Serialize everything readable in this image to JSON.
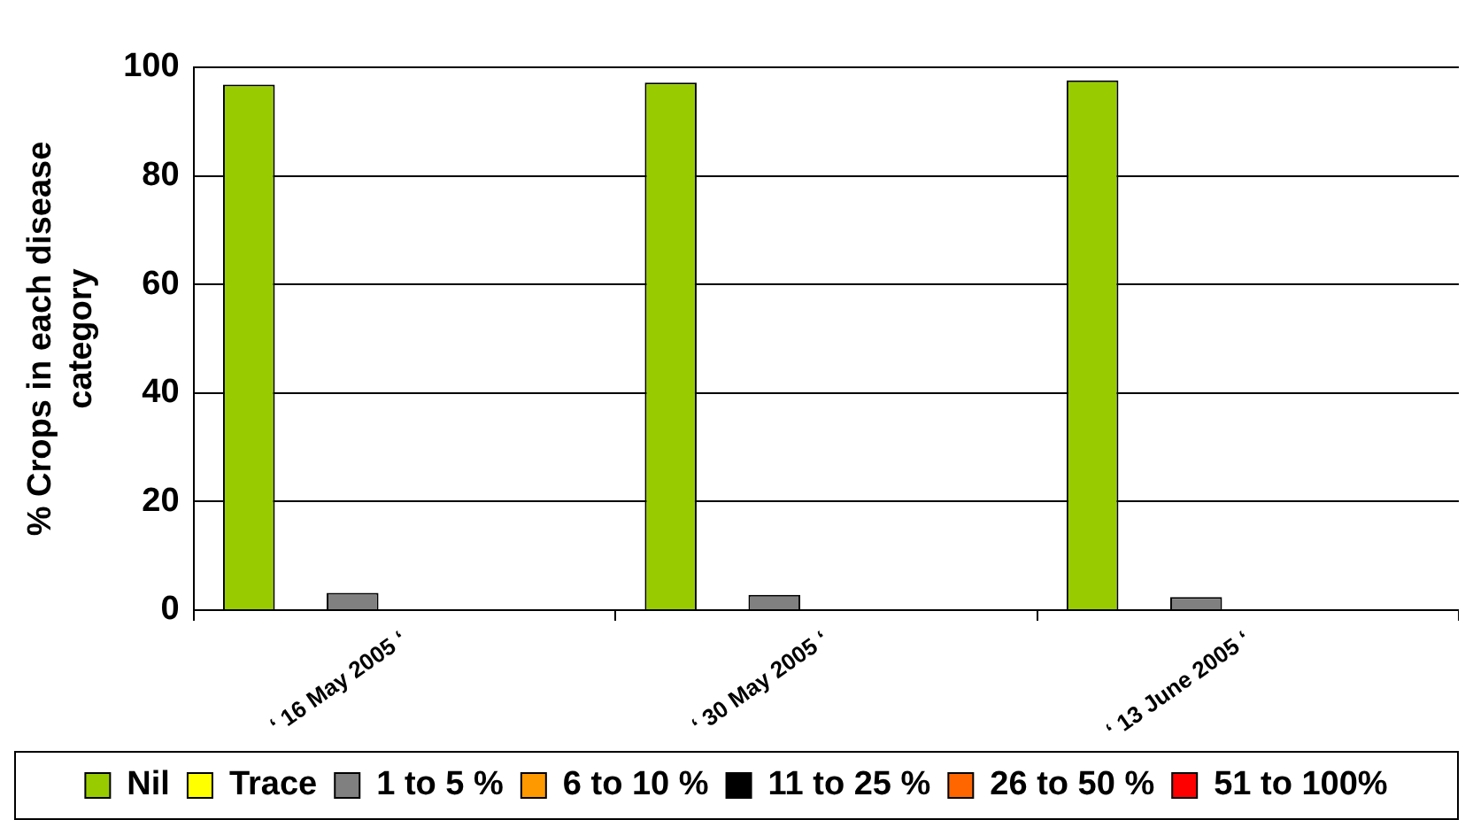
{
  "chart_data": {
    "type": "bar",
    "ylabel": "% Crops in each disease category",
    "categories": [
      "‘ 16 May 2005 ‘",
      "‘ 30 May 2005 ‘",
      "‘ 13 June 2005 ‘"
    ],
    "series": [
      {
        "name": "Nil",
        "color": "#99cc00",
        "values": [
          96.8,
          97.2,
          97.6
        ]
      },
      {
        "name": "Trace",
        "color": "#ffff00",
        "values": [
          0,
          0,
          0
        ]
      },
      {
        "name": "1 to 5 %",
        "color": "#808080",
        "values": [
          3.2,
          2.8,
          2.4
        ]
      },
      {
        "name": "6 to 10 %",
        "color": "#ff9900",
        "values": [
          0,
          0,
          0
        ]
      },
      {
        "name": "11 to 25 %",
        "color": "#000000",
        "values": [
          0,
          0,
          0
        ]
      },
      {
        "name": "26 to 50 %",
        "color": "#ff6600",
        "values": [
          0,
          0,
          0
        ]
      },
      {
        "name": "51 to 100%",
        "color": "#ff0000",
        "values": [
          0,
          0,
          0
        ]
      }
    ],
    "ylim": [
      0,
      100
    ],
    "yticks": [
      0,
      20,
      40,
      60,
      80,
      100
    ],
    "grid": "y",
    "legend": "bottom"
  }
}
